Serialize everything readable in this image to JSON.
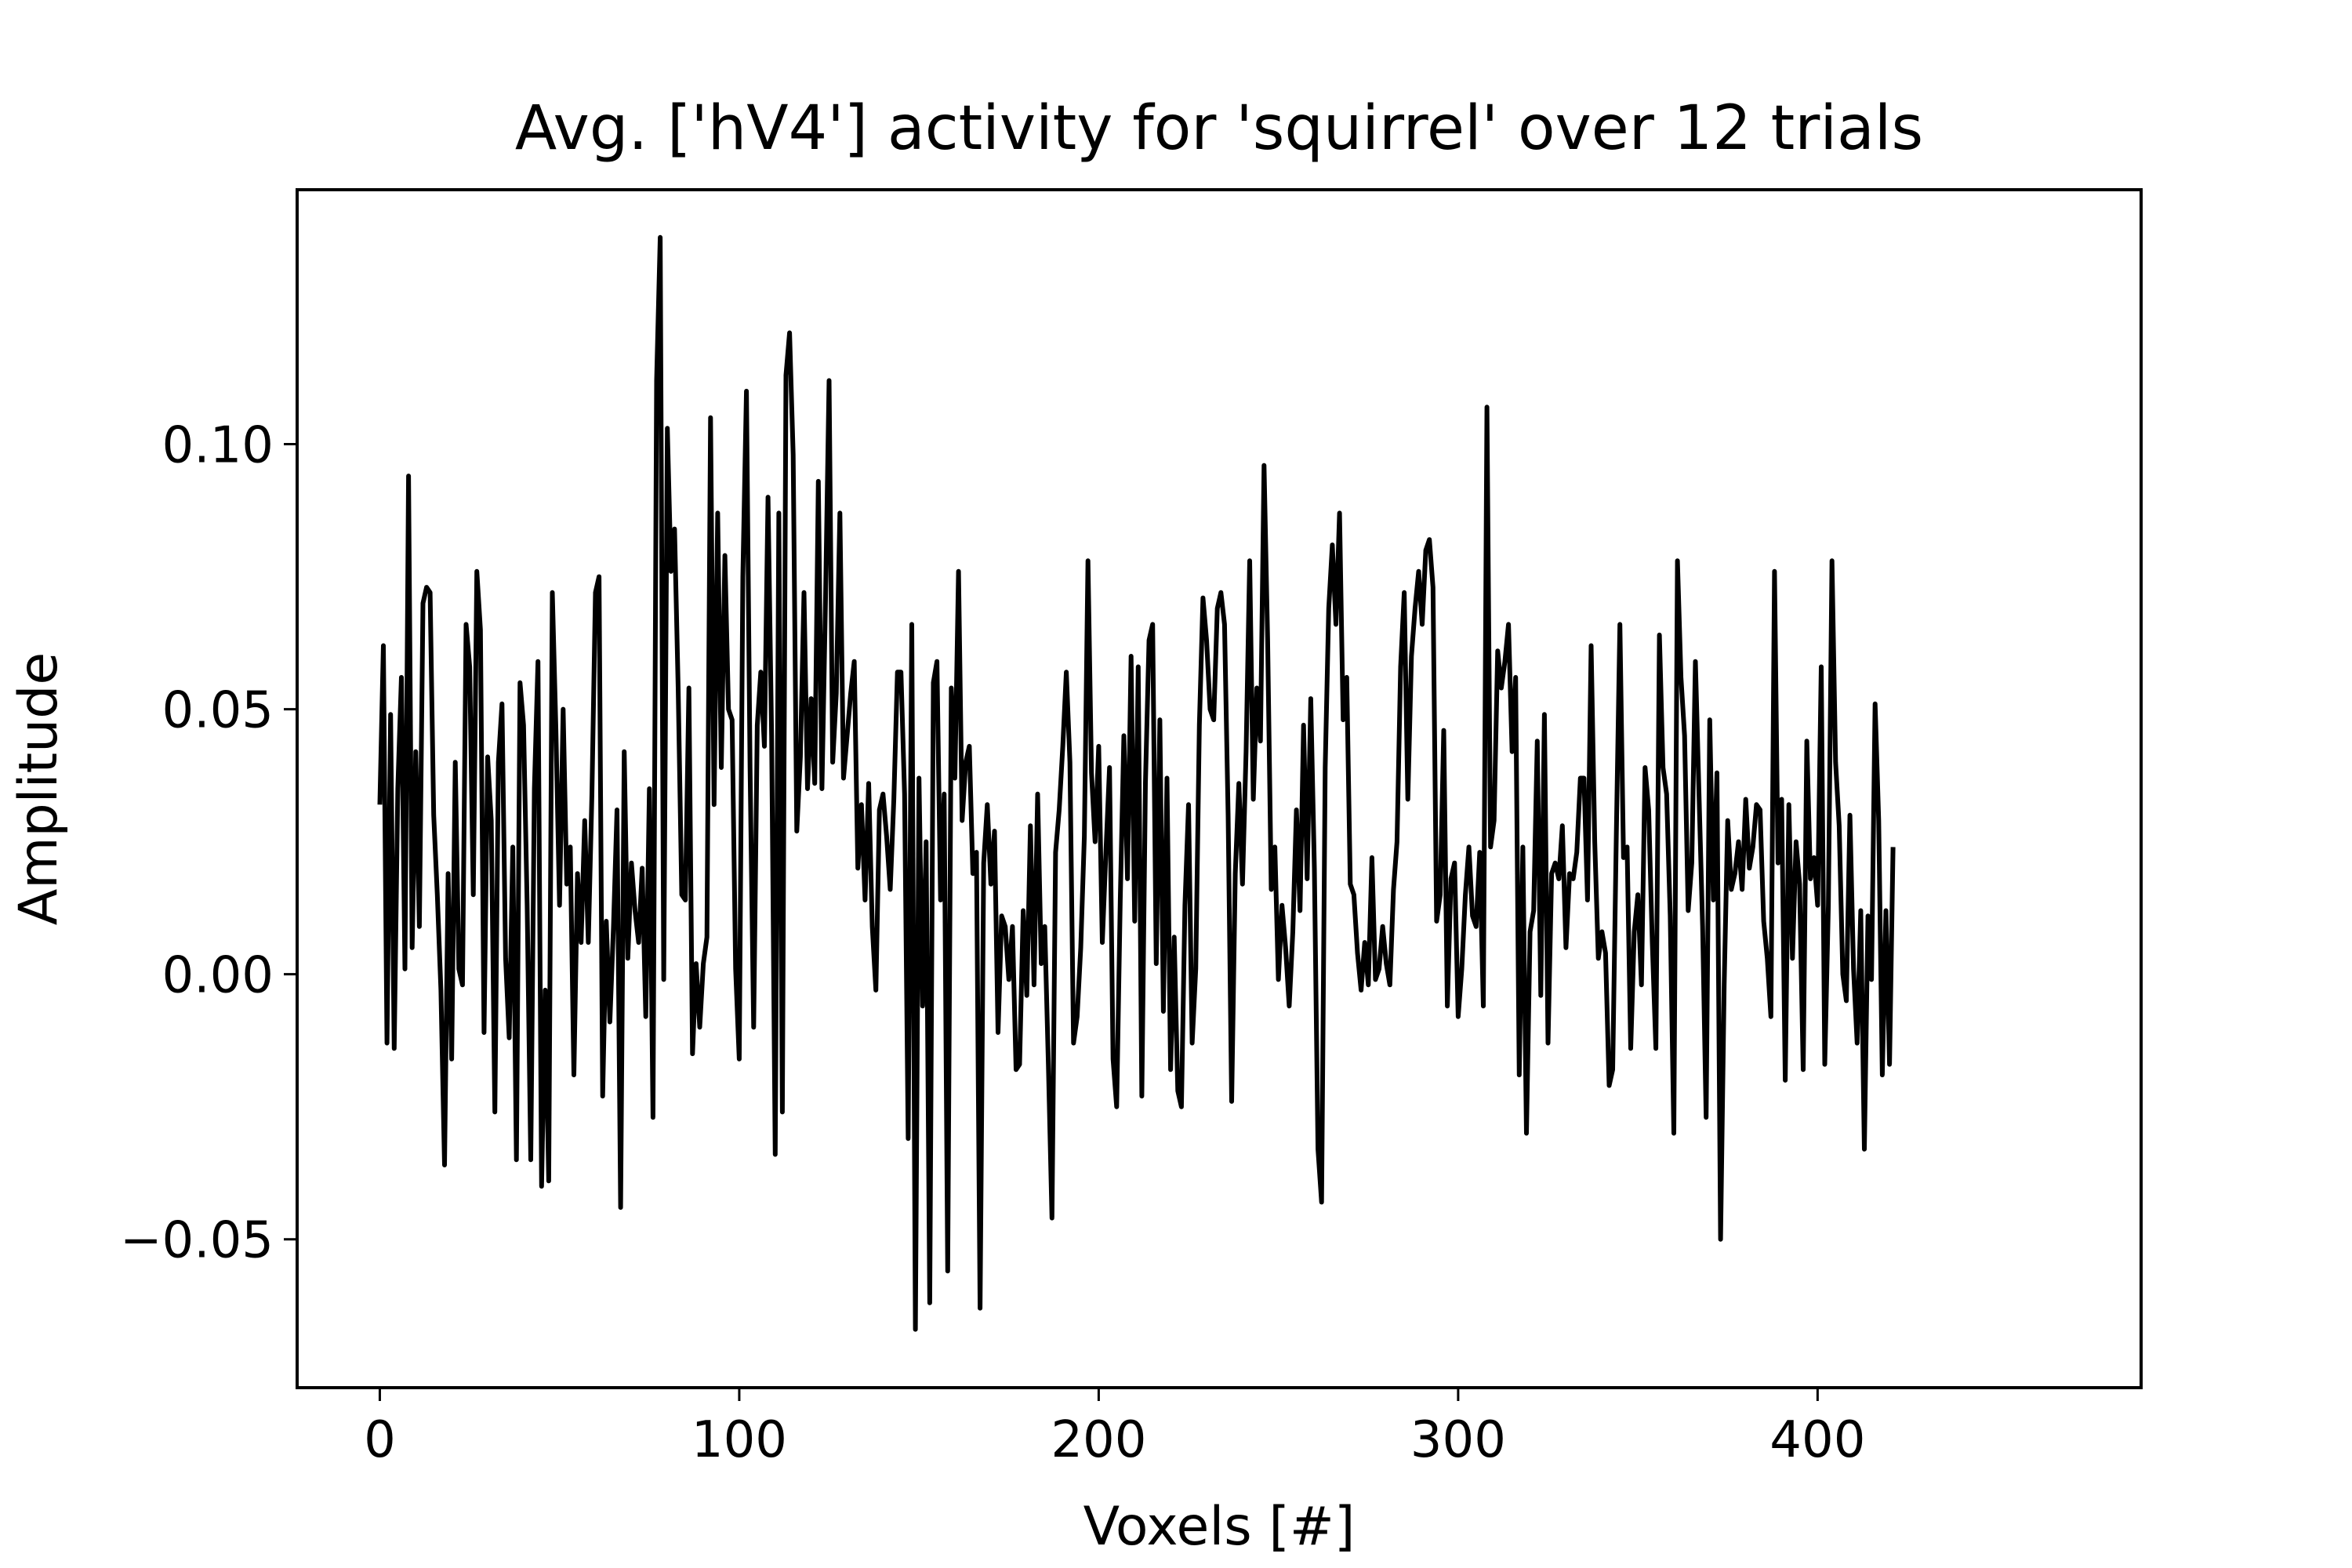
{
  "chart_data": {
    "type": "line",
    "title": "Avg. ['hV4'] activity for 'squirrel' over 12 trials",
    "xlabel": "Voxels [#]",
    "ylabel": "Amplitude",
    "xlim": [
      -23,
      490
    ],
    "ylim": [
      -0.078,
      0.148
    ],
    "xticks": [
      0,
      100,
      200,
      300,
      400
    ],
    "xtick_labels": [
      "0",
      "100",
      "200",
      "300",
      "400"
    ],
    "yticks": [
      -0.05,
      0,
      0.05,
      0.1
    ],
    "ytick_labels": [
      "−0.05",
      "0.00",
      "0.05",
      "0.10"
    ],
    "grid": false,
    "series": [
      {
        "color": "#000000",
        "x_start": 0,
        "x_step": 1,
        "values": [
          0.032,
          0.062,
          -0.013,
          0.049,
          -0.014,
          0.035,
          0.056,
          0.001,
          0.094,
          0.005,
          0.042,
          0.009,
          0.07,
          0.073,
          0.072,
          0.03,
          0.015,
          -0.003,
          -0.036,
          0.019,
          -0.016,
          0.04,
          0.001,
          -0.002,
          0.066,
          0.058,
          0.015,
          0.076,
          0.065,
          -0.011,
          0.041,
          0.029,
          -0.026,
          0.04,
          0.051,
          0.003,
          -0.012,
          0.024,
          -0.035,
          0.055,
          0.047,
          0.013,
          -0.035,
          0.035,
          0.059,
          -0.04,
          -0.003,
          -0.039,
          0.072,
          0.046,
          0.013,
          0.05,
          0.017,
          0.024,
          -0.019,
          0.019,
          0.006,
          0.029,
          0.006,
          0.034,
          0.072,
          0.075,
          -0.023,
          0.01,
          -0.009,
          0.009,
          0.031,
          -0.044,
          0.042,
          0.003,
          0.021,
          0.012,
          0.006,
          0.02,
          -0.008,
          0.035,
          -0.027,
          0.112,
          0.139,
          -0.001,
          0.103,
          0.076,
          0.084,
          0.054,
          0.015,
          0.014,
          0.054,
          -0.015,
          0.002,
          -0.01,
          0.002,
          0.007,
          0.105,
          0.032,
          0.087,
          0.039,
          0.079,
          0.05,
          0.048,
          0.001,
          -0.016,
          0.075,
          0.11,
          0.039,
          -0.01,
          0.047,
          0.057,
          0.043,
          0.09,
          0.045,
          -0.034,
          0.087,
          -0.026,
          0.113,
          0.121,
          0.098,
          0.027,
          0.041,
          0.072,
          0.035,
          0.052,
          0.036,
          0.093,
          0.035,
          0.071,
          0.112,
          0.04,
          0.053,
          0.087,
          0.037,
          0.045,
          0.053,
          0.059,
          0.02,
          0.032,
          0.014,
          0.036,
          0.009,
          -0.003,
          0.031,
          0.034,
          0.026,
          0.016,
          0.033,
          0.057,
          0.057,
          0.034,
          -0.031,
          0.066,
          -0.067,
          0.037,
          -0.006,
          0.025,
          -0.062,
          0.055,
          0.059,
          0.014,
          0.034,
          -0.056,
          0.054,
          0.037,
          0.076,
          0.029,
          0.04,
          0.043,
          0.019,
          0.023,
          -0.063,
          0.021,
          0.032,
          0.017,
          0.027,
          -0.011,
          0.011,
          0.009,
          -0.001,
          0.009,
          -0.018,
          -0.017,
          0.012,
          -0.004,
          0.028,
          -0.002,
          0.034,
          0.002,
          0.009,
          -0.017,
          -0.046,
          0.023,
          0.031,
          0.043,
          0.057,
          0.04,
          -0.013,
          -0.008,
          0.005,
          0.026,
          0.078,
          0.038,
          0.025,
          0.043,
          0.006,
          0.023,
          0.039,
          -0.016,
          -0.025,
          0.014,
          0.045,
          0.018,
          0.06,
          0.01,
          0.058,
          -0.023,
          0.036,
          0.063,
          0.066,
          0.002,
          0.048,
          -0.007,
          0.037,
          -0.018,
          0.007,
          -0.022,
          -0.025,
          0.013,
          0.032,
          -0.013,
          0.001,
          0.047,
          0.071,
          0.063,
          0.05,
          0.048,
          0.069,
          0.072,
          0.066,
          0.03,
          -0.024,
          0.019,
          0.036,
          0.017,
          0.042,
          0.078,
          0.033,
          0.054,
          0.044,
          0.096,
          0.063,
          0.016,
          0.024,
          -0.001,
          0.013,
          0.005,
          -0.006,
          0.008,
          0.031,
          0.012,
          0.047,
          0.018,
          0.052,
          0.02,
          -0.033,
          -0.043,
          0.039,
          0.069,
          0.081,
          0.066,
          0.087,
          0.048,
          0.056,
          0.017,
          0.015,
          0.004,
          -0.003,
          0.006,
          -0.002,
          0.022,
          -0.001,
          0.001,
          0.009,
          0.002,
          -0.002,
          0.016,
          0.025,
          0.058,
          0.072,
          0.033,
          0.06,
          0.069,
          0.076,
          0.066,
          0.08,
          0.082,
          0.073,
          0.01,
          0.015,
          0.046,
          -0.006,
          0.018,
          0.021,
          -0.008,
          0.001,
          0.015,
          0.024,
          0.011,
          0.009,
          0.023,
          -0.006,
          0.107,
          0.024,
          0.029,
          0.061,
          0.054,
          0.059,
          0.066,
          0.042,
          0.056,
          -0.019,
          0.024,
          -0.03,
          0.008,
          0.012,
          0.044,
          -0.004,
          0.049,
          -0.013,
          0.019,
          0.021,
          0.018,
          0.028,
          0.005,
          0.019,
          0.018,
          0.023,
          0.037,
          0.037,
          0.014,
          0.062,
          0.025,
          0.003,
          0.008,
          0.004,
          -0.021,
          -0.018,
          0.026,
          0.066,
          0.022,
          0.024,
          -0.014,
          0.008,
          0.015,
          -0.002,
          0.039,
          0.031,
          0.006,
          -0.014,
          0.064,
          0.039,
          0.034,
          0.011,
          -0.03,
          0.078,
          0.056,
          0.045,
          0.012,
          0.021,
          0.059,
          0.034,
          0.009,
          -0.027,
          0.048,
          0.014,
          0.038,
          -0.05,
          -0.002,
          0.029,
          0.016,
          0.019,
          0.025,
          0.016,
          0.033,
          0.02,
          0.024,
          0.032,
          0.031,
          0.01,
          0.003,
          -0.008,
          0.076,
          0.021,
          0.033,
          -0.02,
          0.032,
          0.003,
          0.025,
          0.017,
          -0.018,
          0.044,
          0.018,
          0.022,
          0.013,
          0.058,
          -0.017,
          0.013,
          0.078,
          0.04,
          0.028,
          0.0,
          -0.005,
          0.03,
          0.001,
          -0.013,
          0.012,
          -0.033,
          0.011,
          -0.001,
          0.051,
          0.029,
          -0.019,
          0.012,
          -0.017,
          0.024
        ]
      }
    ]
  }
}
